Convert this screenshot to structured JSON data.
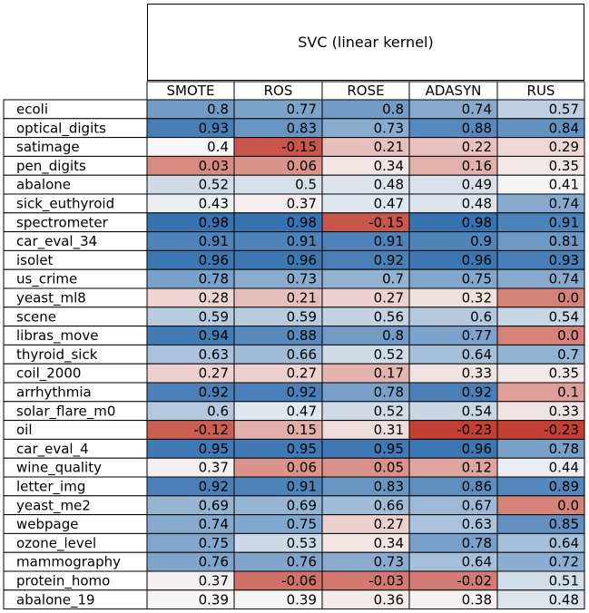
{
  "chart_data": {
    "type": "heatmap",
    "title": "SVC (linear kernel)",
    "columns": [
      "SMOTE",
      "ROS",
      "ROSE",
      "ADASYN",
      "RUS"
    ],
    "rows": [
      "ecoli",
      "optical_digits",
      "satimage",
      "pen_digits",
      "abalone",
      "sick_euthyroid",
      "spectrometer",
      "car_eval_34",
      "isolet",
      "us_crime",
      "yeast_ml8",
      "scene",
      "libras_move",
      "thyroid_sick",
      "coil_2000",
      "arrhythmia",
      "solar_flare_m0",
      "oil",
      "car_eval_4",
      "wine_quality",
      "letter_img",
      "yeast_me2",
      "webpage",
      "ozone_level",
      "mammography",
      "protein_homo",
      "abalone_19"
    ],
    "values": [
      [
        "0.8",
        "0.77",
        "0.8",
        "0.74",
        "0.57"
      ],
      [
        "0.93",
        "0.83",
        "0.73",
        "0.88",
        "0.84"
      ],
      [
        "0.4",
        "-0.15",
        "0.21",
        "0.22",
        "0.29"
      ],
      [
        "0.03",
        "0.06",
        "0.34",
        "0.16",
        "0.35"
      ],
      [
        "0.52",
        "0.5",
        "0.48",
        "0.49",
        "0.41"
      ],
      [
        "0.43",
        "0.37",
        "0.47",
        "0.48",
        "0.74"
      ],
      [
        "0.98",
        "0.98",
        "-0.15",
        "0.98",
        "0.91"
      ],
      [
        "0.91",
        "0.91",
        "0.91",
        "0.9",
        "0.81"
      ],
      [
        "0.96",
        "0.96",
        "0.92",
        "0.96",
        "0.93"
      ],
      [
        "0.78",
        "0.73",
        "0.7",
        "0.75",
        "0.74"
      ],
      [
        "0.28",
        "0.21",
        "0.27",
        "0.32",
        "0.0"
      ],
      [
        "0.59",
        "0.59",
        "0.56",
        "0.6",
        "0.54"
      ],
      [
        "0.94",
        "0.88",
        "0.8",
        "0.77",
        "0.0"
      ],
      [
        "0.63",
        "0.66",
        "0.52",
        "0.64",
        "0.7"
      ],
      [
        "0.27",
        "0.27",
        "0.17",
        "0.33",
        "0.35"
      ],
      [
        "0.92",
        "0.92",
        "0.78",
        "0.92",
        "0.1"
      ],
      [
        "0.6",
        "0.47",
        "0.52",
        "0.54",
        "0.33"
      ],
      [
        "-0.12",
        "0.15",
        "0.31",
        "-0.23",
        "-0.23"
      ],
      [
        "0.95",
        "0.95",
        "0.95",
        "0.96",
        "0.78"
      ],
      [
        "0.37",
        "0.06",
        "0.05",
        "0.12",
        "0.44"
      ],
      [
        "0.92",
        "0.91",
        "0.83",
        "0.86",
        "0.89"
      ],
      [
        "0.69",
        "0.69",
        "0.66",
        "0.67",
        "0.0"
      ],
      [
        "0.74",
        "0.75",
        "0.27",
        "0.63",
        "0.85"
      ],
      [
        "0.75",
        "0.53",
        "0.34",
        "0.78",
        "0.64"
      ],
      [
        "0.76",
        "0.76",
        "0.73",
        "0.64",
        "0.72"
      ],
      [
        "0.37",
        "-0.06",
        "-0.03",
        "-0.02",
        "0.51"
      ],
      [
        "0.39",
        "0.39",
        "0.36",
        "0.38",
        "0.48"
      ]
    ],
    "colormap": "diverging red-white-blue (red = low, blue = high)",
    "colors": {
      "low": "#c0392b",
      "mid": "#f7f7f7",
      "high": "#2f6ead"
    }
  }
}
